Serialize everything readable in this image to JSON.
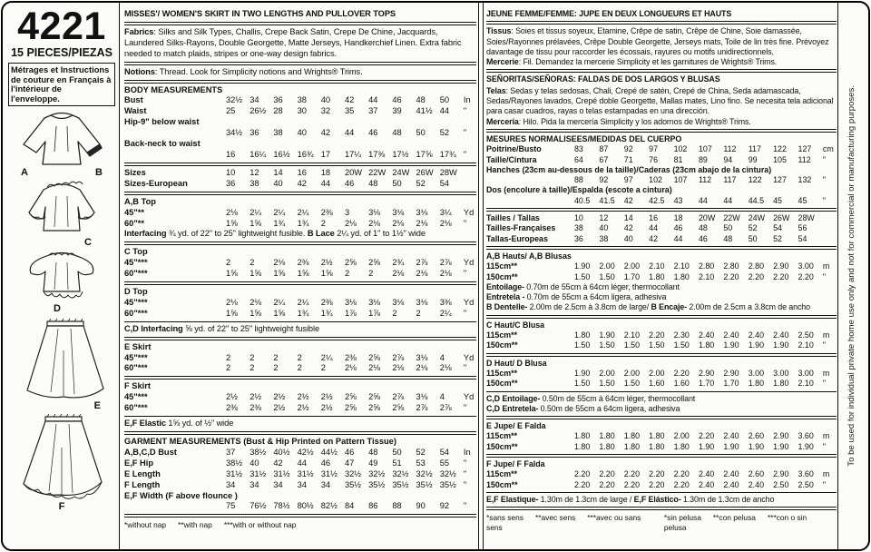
{
  "left_panel": {
    "pattern_number": "4221",
    "pieces": "15 PIECES/PIEZAS",
    "french_note": "Métrages et Instructions de couture en Français à l'intérieur de l'enveloppe.",
    "labels": [
      "A",
      "B",
      "C",
      "D",
      "E",
      "F"
    ]
  },
  "strip": {
    "text": "To be used for individual private home use only and not for commercial or manufacturing purposes."
  },
  "en_sections": [
    {
      "type": "title",
      "text": "MISSES'/ WOMEN'S SKIRT IN TWO LENGTHS AND PULLOVER TOPS",
      "sep": "double"
    },
    {
      "type": "para",
      "lines": [
        [
          {
            "b": "Fabrics"
          },
          {
            "t": ": Silks and Silk Types, Challis, Crepe Back Satin, Crepe De Chine, Jacquards, Laundered Silks-Rayons, Double Georgette, Matte Jerseys, Handkerchief Linen. Extra fabric needed to match plaids, stripes or one-way design fabrics."
          }
        ]
      ],
      "sep": "double"
    },
    {
      "type": "para",
      "lines": [
        [
          {
            "b": "Notions"
          },
          {
            "t": ": Thread. Look for Simplicity notions and Wrights® Trims."
          }
        ]
      ],
      "sep": "double"
    },
    {
      "type": "table",
      "heading": "BODY MEASUREMENTS",
      "rows": [
        {
          "label": "Bust",
          "values": [
            "32½",
            "34",
            "36",
            "38",
            "40",
            "42",
            "44",
            "46",
            "48",
            "50"
          ],
          "unit": "In"
        },
        {
          "label": "Waist",
          "values": [
            "25",
            "26½",
            "28",
            "30",
            "32",
            "35",
            "37",
            "39",
            "41½",
            "44"
          ],
          "unit": "\""
        },
        {
          "label": "Hip-9\" below waist",
          "wrap": true,
          "values": [
            "34½",
            "36",
            "38",
            "40",
            "42",
            "44",
            "46",
            "48",
            "50",
            "52"
          ],
          "unit": "\""
        },
        {
          "label": "Back-neck to waist",
          "wrap": true,
          "values": [
            "16",
            "16¼",
            "16½",
            "16¾",
            "17",
            "17¼",
            "17⅜",
            "17½",
            "17⅝",
            "17¾"
          ],
          "unit": "\""
        }
      ],
      "sep": "double"
    },
    {
      "type": "table",
      "rows": [
        {
          "label": "Sizes",
          "values": [
            "10",
            "12",
            "14",
            "16",
            "18",
            "20W",
            "22W",
            "24W",
            "26W",
            "28W"
          ],
          "unit": ""
        },
        {
          "label": "Sizes-European",
          "values": [
            "36",
            "38",
            "40",
            "42",
            "44",
            "46",
            "48",
            "50",
            "52",
            "54"
          ],
          "unit": ""
        }
      ],
      "sep": "double"
    },
    {
      "type": "table",
      "heading": "A,B Top",
      "rows": [
        {
          "label": "45\"**",
          "values": [
            "2⅛",
            "2¼",
            "2¼",
            "2¼",
            "2⅜",
            "3",
            "3⅛",
            "3⅛",
            "3⅛",
            "3¼"
          ],
          "unit": "Yd"
        },
        {
          "label": "60\"**",
          "values": [
            "1⅝",
            "1⅝",
            "1¾",
            "1¾",
            "2",
            "2⅛",
            "2⅛",
            "2⅛",
            "2⅛",
            "2⅛"
          ],
          "unit": "\""
        }
      ],
      "notes": [
        [
          {
            "b": "Interfacing"
          },
          {
            "t": " ¾ yd. of 22\" to 25\" lightweight fusible. "
          },
          {
            "b": "B Lace"
          },
          {
            "t": " 2¼ yd. of 1\" to 1½\" wide"
          }
        ]
      ],
      "sep": "double"
    },
    {
      "type": "table",
      "heading": "C Top",
      "rows": [
        {
          "label": "45\"***",
          "values": [
            "2",
            "2",
            "2⅛",
            "2⅜",
            "2½",
            "2⅝",
            "2⅝",
            "2¾",
            "2⅞",
            "2⅞"
          ],
          "unit": "Yd"
        },
        {
          "label": "60\"***",
          "values": [
            "1⅝",
            "1⅝",
            "1⅝",
            "1⅝",
            "1⅝",
            "2",
            "2",
            "2⅛",
            "2⅛",
            "2⅛"
          ],
          "unit": "\""
        }
      ],
      "sep": "double"
    },
    {
      "type": "table",
      "heading": "D Top",
      "rows": [
        {
          "label": "45\"***",
          "values": [
            "2⅛",
            "2⅛",
            "2¼",
            "2¼",
            "2⅜",
            "3⅛",
            "3⅛",
            "3⅛",
            "3⅛",
            "3⅜"
          ],
          "unit": "Yd"
        },
        {
          "label": "60\"***",
          "values": [
            "1⅝",
            "1⅝",
            "1⅝",
            "1¾",
            "1¾",
            "1⅞",
            "1⅞",
            "2",
            "2",
            "2¼"
          ],
          "unit": "\""
        }
      ],
      "sep": "single"
    },
    {
      "type": "para",
      "lines": [
        [
          {
            "b": "C,D Interfacing"
          },
          {
            "t": " ⅝ yd. of 22\" to 25\" lightweight fusible"
          }
        ]
      ],
      "sep": "double"
    },
    {
      "type": "table",
      "heading": "E Skirt",
      "rows": [
        {
          "label": "45\"***",
          "values": [
            "2",
            "2",
            "2",
            "2",
            "2¼",
            "2⅜",
            "2⅝",
            "2⅞",
            "3⅛",
            "4"
          ],
          "unit": "Yd"
        },
        {
          "label": "60\"***",
          "values": [
            "2",
            "2",
            "2",
            "2",
            "2",
            "2⅛",
            "2⅛",
            "2⅛",
            "2⅛",
            "2⅛"
          ],
          "unit": "\""
        }
      ],
      "sep": "double"
    },
    {
      "type": "table",
      "heading": "F Skirt",
      "rows": [
        {
          "label": "45\"***",
          "values": [
            "2½",
            "2½",
            "2½",
            "2½",
            "2½",
            "2⅝",
            "2⅝",
            "2⅞",
            "3⅛",
            "4"
          ],
          "unit": "Yd"
        },
        {
          "label": "60\"***",
          "values": [
            "2⅜",
            "2⅜",
            "2½",
            "2½",
            "2½",
            "2⅝",
            "2⅝",
            "2⅝",
            "2⅞",
            "2⅞"
          ],
          "unit": "\""
        }
      ],
      "sep": "single"
    },
    {
      "type": "para",
      "lines": [
        [
          {
            "b": "E,F Elastic"
          },
          {
            "t": " 1⅝ yd. of ½\" wide"
          }
        ]
      ],
      "sep": "double"
    },
    {
      "type": "table",
      "heading": "GARMENT MEASUREMENTS (Bust & Hip Printed on Pattern Tissue)",
      "rows": [
        {
          "label": "A,B,C,D Bust",
          "values": [
            "37",
            "38½",
            "40½",
            "42½",
            "44½",
            "46",
            "48",
            "50",
            "52",
            "54"
          ],
          "unit": "In"
        },
        {
          "label": "E,F Hip",
          "values": [
            "38½",
            "40",
            "42",
            "44",
            "46",
            "47",
            "49",
            "51",
            "53",
            "55"
          ],
          "unit": "\""
        },
        {
          "label": "E Length",
          "values": [
            "31½",
            "31½",
            "31½",
            "31½",
            "31½",
            "32½",
            "32½",
            "32½",
            "32½",
            "32½"
          ],
          "unit": "\""
        },
        {
          "label": "F Length",
          "values": [
            "34",
            "34",
            "34",
            "34",
            "34",
            "35½",
            "35½",
            "35½",
            "35½",
            "35½"
          ],
          "unit": "\""
        },
        {
          "label": "E,F Width (F above flounce )",
          "wrap": true,
          "values": [
            "75",
            "76½",
            "78½",
            "80½",
            "82½",
            "84",
            "86",
            "88",
            "90",
            "92"
          ],
          "unit": "\""
        }
      ],
      "sep": "double"
    },
    {
      "type": "footnotes",
      "left": [
        "*without nap",
        "**with nap",
        "***with or without nap"
      ],
      "right": []
    }
  ],
  "intl_sections": [
    {
      "type": "title",
      "text": "JEUNE FEMME/FEMME: JUPE EN DEUX LONGUEURS ET HAUTS",
      "sep": "double"
    },
    {
      "type": "para",
      "lines": [
        [
          {
            "b": "Tissus"
          },
          {
            "t": ": Soies et tissus soyeux, Etamine, Crêpe de satin, Crêpe de Chine, Soie damassée, Soies/Rayonnes prélavées, Crêpe Double Georgette, Jerseys mats, Toile de lin très fine. Prévoyez davantage de tissu pour raccorder les écossais, rayures ou motifs unidirectionnels."
          }
        ],
        [
          {
            "b": "Mercerie"
          },
          {
            "t": ": Fil. Demandez la mercerie Simplicity et les garnitures de Wrights® Trims."
          }
        ]
      ],
      "sep": "double"
    },
    {
      "type": "title",
      "text": "SEÑORITAS/SEÑORAS: FALDAS DE DOS LARGOS Y BLUSAS",
      "sep": null
    },
    {
      "type": "para",
      "lines": [
        [
          {
            "b": "Telas"
          },
          {
            "t": ": Sedas y telas sedosas, Chali, Crepé de satén, Crepé de China, Seda adamascada, Sedas/Rayones lavados, Crepé doble Georgette, Mallas mates, Lino fino. Se necesita tela adicional para casar cuadros, rayas o telas estampadas en una dirección."
          }
        ],
        [
          {
            "b": "Mercería"
          },
          {
            "t": ": Hilo. Pida la mercería Simplicity y los adornos de Wrights® Trims."
          }
        ]
      ],
      "sep": "double"
    },
    {
      "type": "table",
      "heading": "MESURES NORMALISEES/MEDIDAS DEL CUERPO",
      "rows": [
        {
          "label": "Poitrine/Busto",
          "values": [
            "83",
            "87",
            "92",
            "97",
            "102",
            "107",
            "112",
            "117",
            "122",
            "127"
          ],
          "unit": "cm"
        },
        {
          "label": "Taille/Cintura",
          "values": [
            "64",
            "67",
            "71",
            "76",
            "81",
            "89",
            "94",
            "99",
            "105",
            "112"
          ],
          "unit": "\""
        },
        {
          "label": "Hanches (23cm au-dessous de la taille)/Caderas (23cm abajo de la cintura)",
          "wrap": true,
          "values": [
            "88",
            "92",
            "97",
            "102",
            "107",
            "112",
            "117",
            "122",
            "127",
            "132"
          ],
          "unit": "\""
        },
        {
          "label": "Dos (encolure à taille)/Espalda (escote a cintura)",
          "wrap": true,
          "values": [
            "40.5",
            "41.5",
            "42",
            "42.5",
            "43",
            "44",
            "44",
            "44.5",
            "45",
            "45"
          ],
          "unit": "\""
        }
      ],
      "sep": "double"
    },
    {
      "type": "table",
      "rows": [
        {
          "label": "Tailles / Tallas",
          "values": [
            "10",
            "12",
            "14",
            "16",
            "18",
            "20W",
            "22W",
            "24W",
            "26W",
            "28W"
          ],
          "unit": ""
        },
        {
          "label": "Tailles-Françaises",
          "values": [
            "38",
            "40",
            "42",
            "44",
            "46",
            "48",
            "50",
            "52",
            "54",
            "56"
          ],
          "unit": ""
        },
        {
          "label": "Tallas-Europeas",
          "values": [
            "36",
            "38",
            "40",
            "42",
            "44",
            "46",
            "48",
            "50",
            "52",
            "54"
          ],
          "unit": ""
        }
      ],
      "sep": "double"
    },
    {
      "type": "table",
      "heading": "A,B Hauts/ A,B Blusas",
      "rows": [
        {
          "label": "115cm**",
          "values": [
            "1.90",
            "2.00",
            "2.00",
            "2.10",
            "2.10",
            "2.80",
            "2.80",
            "2.80",
            "2.90",
            "3.00"
          ],
          "unit": "m"
        },
        {
          "label": "150cm**",
          "values": [
            "1.50",
            "1.50",
            "1.70",
            "1.80",
            "1.80",
            "2.10",
            "2.20",
            "2.20",
            "2.20",
            "2.20"
          ],
          "unit": "\""
        }
      ],
      "notes": [
        [
          {
            "b": "Entoilage-"
          },
          {
            "t": " 0.70m de 55cm à 64cm léger, thermocollant"
          }
        ],
        [
          {
            "b": "Entretela -"
          },
          {
            "t": " 0.70m de 55cm a 64cm ligera, adhesiva"
          }
        ],
        [
          {
            "b": "B Dentelle-"
          },
          {
            "t": " 2.00m de 2.5cm à 3.8cm de large/ "
          },
          {
            "b": "B Encaje-"
          },
          {
            "t": " 2.00m de 2.5cm a 3.8cm de ancho"
          }
        ]
      ],
      "sep": "double"
    },
    {
      "type": "table",
      "heading": "C Haut/C Blusa",
      "rows": [
        {
          "label": "115cm**",
          "values": [
            "1.80",
            "1.90",
            "2.10",
            "2.20",
            "2.30",
            "2.40",
            "2.40",
            "2.40",
            "2.40",
            "2.50"
          ],
          "unit": "m"
        },
        {
          "label": "150cm**",
          "values": [
            "1.50",
            "1.50",
            "1.50",
            "1.50",
            "1.50",
            "1.80",
            "1.90",
            "1.90",
            "1.90",
            "2.10"
          ],
          "unit": "\""
        }
      ],
      "sep": "double"
    },
    {
      "type": "table",
      "heading": "D Haut/ D Blusa",
      "rows": [
        {
          "label": "115cm**",
          "values": [
            "1.90",
            "2.00",
            "2.00",
            "2.00",
            "2.20",
            "2.90",
            "2.90",
            "3.00",
            "3.00",
            "3.00"
          ],
          "unit": "m"
        },
        {
          "label": "150cm**",
          "values": [
            "1.50",
            "1.50",
            "1.50",
            "1.60",
            "1.60",
            "1.70",
            "1.70",
            "1.80",
            "1.80",
            "2.10"
          ],
          "unit": "\""
        }
      ],
      "sep": "single"
    },
    {
      "type": "para",
      "lines": [
        [
          {
            "b": "C,D Entoilage-"
          },
          {
            "t": " 0.50m de 55cm à 64cm léger, thermocollant"
          }
        ],
        [
          {
            "b": "C,D Entretela-"
          },
          {
            "t": " 0.50m de 55cm a 64cm ligera, adhesiva"
          }
        ]
      ],
      "sep": "double"
    },
    {
      "type": "table",
      "heading": "E Jupe/ E Falda",
      "rows": [
        {
          "label": "115cm**",
          "values": [
            "1.80",
            "1.80",
            "1.80",
            "1.80",
            "2.00",
            "2.20",
            "2.40",
            "2.60",
            "2.90",
            "3.60"
          ],
          "unit": "m"
        },
        {
          "label": "150cm**",
          "values": [
            "1.80",
            "1.80",
            "1.80",
            "1.80",
            "1.80",
            "1.90",
            "1.90",
            "1.90",
            "1.90",
            "1.90"
          ],
          "unit": "\""
        }
      ],
      "sep": "double"
    },
    {
      "type": "table",
      "heading": "F Jupe/ F Falda",
      "rows": [
        {
          "label": "115cm**",
          "values": [
            "2.20",
            "2.20",
            "2.20",
            "2.20",
            "2.20",
            "2.40",
            "2.40",
            "2.60",
            "2.90",
            "3.60"
          ],
          "unit": "m"
        },
        {
          "label": "150cm**",
          "values": [
            "2.20",
            "2.20",
            "2.20",
            "2.20",
            "2.20",
            "2.40",
            "2.40",
            "2.40",
            "2.50",
            "2.50"
          ],
          "unit": "\""
        }
      ],
      "sep": "single"
    },
    {
      "type": "para",
      "lines": [
        [
          {
            "b": "E,F Elastique-"
          },
          {
            "t": " 1.30m de 1.3cm de large / "
          },
          {
            "b": "E,F Elástico-"
          },
          {
            "t": " 1.30m de 1.3cm de ancho"
          }
        ]
      ],
      "sep": "double"
    },
    {
      "type": "footnotes",
      "left": [
        "*sans sens",
        "**avec sens",
        "***avec ou sans sens"
      ],
      "right": [
        "*sin pelusa",
        "**con pelusa",
        "***con o sin pelusa"
      ]
    }
  ]
}
